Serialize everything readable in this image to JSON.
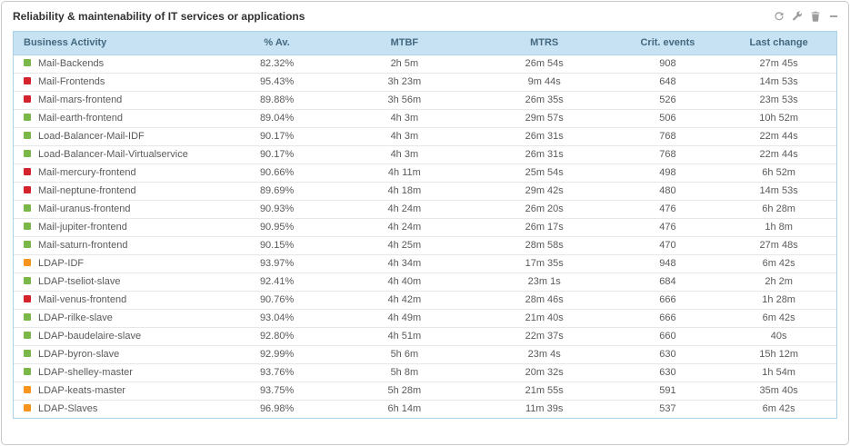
{
  "widget": {
    "title": "Reliability & maintenability of IT services or applications",
    "toolbar": [
      {
        "name": "refresh-icon"
      },
      {
        "name": "wrench-icon"
      },
      {
        "name": "trash-icon"
      },
      {
        "name": "collapse-icon"
      }
    ]
  },
  "status_colors": {
    "green": "#7ab648",
    "red": "#d5232e",
    "orange": "#f7941d"
  },
  "table": {
    "columns": [
      "Business Activity",
      "% Av.",
      "MTBF",
      "MTRS",
      "Crit. events",
      "Last change"
    ],
    "rows": [
      {
        "status": "green",
        "name": "Mail-Backends",
        "av": "82.32%",
        "mtbf": "2h 5m",
        "mtrs": "26m 54s",
        "crit": "908",
        "last": "27m 45s"
      },
      {
        "status": "red",
        "name": "Mail-Frontends",
        "av": "95.43%",
        "mtbf": "3h 23m",
        "mtrs": "9m 44s",
        "crit": "648",
        "last": "14m 53s"
      },
      {
        "status": "red",
        "name": "Mail-mars-frontend",
        "av": "89.88%",
        "mtbf": "3h 56m",
        "mtrs": "26m 35s",
        "crit": "526",
        "last": "23m 53s"
      },
      {
        "status": "green",
        "name": "Mail-earth-frontend",
        "av": "89.04%",
        "mtbf": "4h 3m",
        "mtrs": "29m 57s",
        "crit": "506",
        "last": "10h 52m"
      },
      {
        "status": "green",
        "name": "Load-Balancer-Mail-IDF",
        "av": "90.17%",
        "mtbf": "4h 3m",
        "mtrs": "26m 31s",
        "crit": "768",
        "last": "22m 44s"
      },
      {
        "status": "green",
        "name": "Load-Balancer-Mail-Virtualservice",
        "av": "90.17%",
        "mtbf": "4h 3m",
        "mtrs": "26m 31s",
        "crit": "768",
        "last": "22m 44s"
      },
      {
        "status": "red",
        "name": "Mail-mercury-frontend",
        "av": "90.66%",
        "mtbf": "4h 11m",
        "mtrs": "25m 54s",
        "crit": "498",
        "last": "6h 52m"
      },
      {
        "status": "red",
        "name": "Mail-neptune-frontend",
        "av": "89.69%",
        "mtbf": "4h 18m",
        "mtrs": "29m 42s",
        "crit": "480",
        "last": "14m 53s"
      },
      {
        "status": "green",
        "name": "Mail-uranus-frontend",
        "av": "90.93%",
        "mtbf": "4h 24m",
        "mtrs": "26m 20s",
        "crit": "476",
        "last": "6h 28m"
      },
      {
        "status": "green",
        "name": "Mail-jupiter-frontend",
        "av": "90.95%",
        "mtbf": "4h 24m",
        "mtrs": "26m 17s",
        "crit": "476",
        "last": "1h 8m"
      },
      {
        "status": "green",
        "name": "Mail-saturn-frontend",
        "av": "90.15%",
        "mtbf": "4h 25m",
        "mtrs": "28m 58s",
        "crit": "470",
        "last": "27m 48s"
      },
      {
        "status": "orange",
        "name": "LDAP-IDF",
        "av": "93.97%",
        "mtbf": "4h 34m",
        "mtrs": "17m 35s",
        "crit": "948",
        "last": "6m 42s"
      },
      {
        "status": "green",
        "name": "LDAP-tseliot-slave",
        "av": "92.41%",
        "mtbf": "4h 40m",
        "mtrs": "23m 1s",
        "crit": "684",
        "last": "2h 2m"
      },
      {
        "status": "red",
        "name": "Mail-venus-frontend",
        "av": "90.76%",
        "mtbf": "4h 42m",
        "mtrs": "28m 46s",
        "crit": "666",
        "last": "1h 28m"
      },
      {
        "status": "green",
        "name": "LDAP-rilke-slave",
        "av": "93.04%",
        "mtbf": "4h 49m",
        "mtrs": "21m 40s",
        "crit": "666",
        "last": "6m 42s"
      },
      {
        "status": "green",
        "name": "LDAP-baudelaire-slave",
        "av": "92.80%",
        "mtbf": "4h 51m",
        "mtrs": "22m 37s",
        "crit": "660",
        "last": "40s"
      },
      {
        "status": "green",
        "name": "LDAP-byron-slave",
        "av": "92.99%",
        "mtbf": "5h 6m",
        "mtrs": "23m 4s",
        "crit": "630",
        "last": "15h 12m"
      },
      {
        "status": "green",
        "name": "LDAP-shelley-master",
        "av": "93.76%",
        "mtbf": "5h 8m",
        "mtrs": "20m 32s",
        "crit": "630",
        "last": "1h 54m"
      },
      {
        "status": "orange",
        "name": "LDAP-keats-master",
        "av": "93.75%",
        "mtbf": "5h 28m",
        "mtrs": "21m 55s",
        "crit": "591",
        "last": "35m 40s"
      },
      {
        "status": "orange",
        "name": "LDAP-Slaves",
        "av": "96.98%",
        "mtbf": "6h 14m",
        "mtrs": "11m 39s",
        "crit": "537",
        "last": "6m 42s"
      }
    ]
  }
}
